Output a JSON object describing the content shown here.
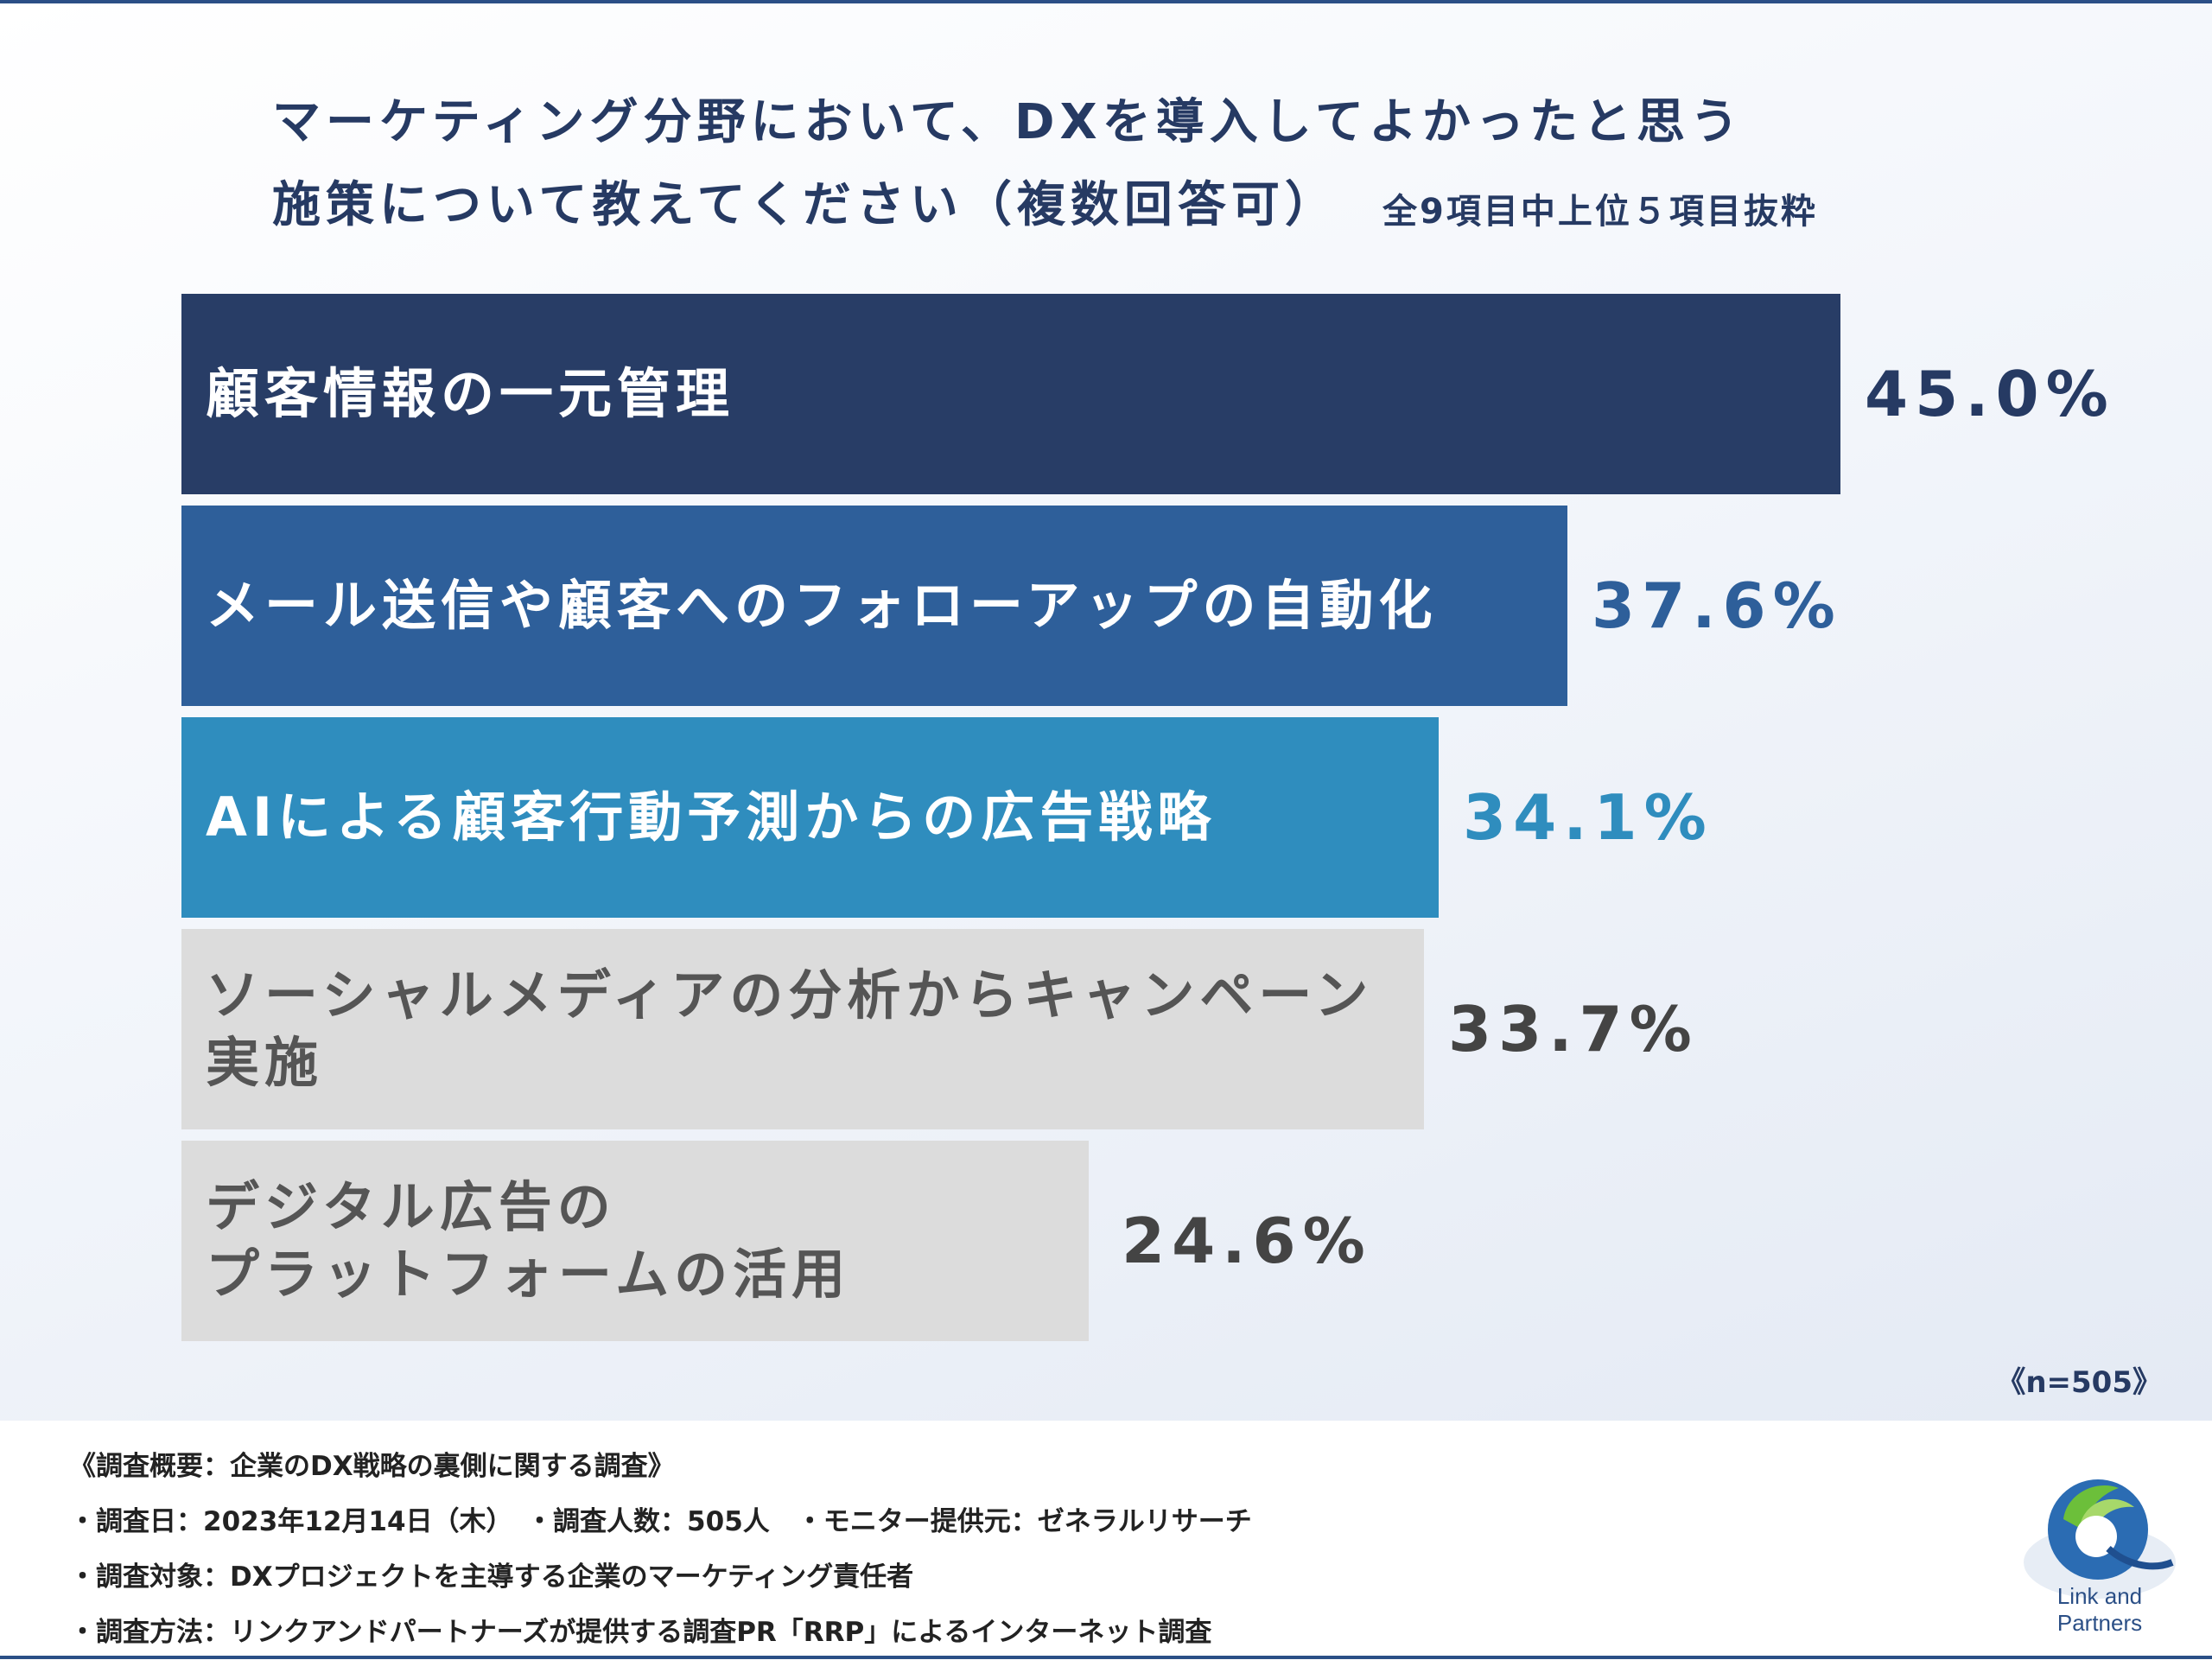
{
  "title_lines": [
    "マーケティング分野において、DXを導入してよかったと思う",
    "施策について教えてください（複数回答可）"
  ],
  "subtitle": "全9項目中上位５項目抜粋",
  "sample_label": "《n=505》",
  "notes": [
    "《調査概要：企業のDX戦略の裏側に関する調査》",
    "・調査日：2023年12月14日（木）　・調査人数：505人　・モニター提供元：ゼネラルリサーチ",
    "・調査対象：DXプロジェクトを主導する企業のマーケティング責任者",
    "・調査方法：リンクアンドパートナーズが提供する調査PR「RRP」によるインターネット調査"
  ],
  "logo_text": "Link and Partners",
  "chart_data": {
    "type": "bar",
    "orientation": "horizontal",
    "categories": [
      "顧客情報の一元管理",
      "メール送信や顧客へのフォローアップの自動化",
      "AIによる顧客行動予測からの広告戦略",
      "ソーシャルメディアの分析からキャンペーン実施",
      "デジタル広告の\nプラットフォームの活用"
    ],
    "values": [
      45.0,
      37.6,
      34.1,
      33.7,
      24.6
    ],
    "value_labels": [
      "45.0%",
      "37.6%",
      "34.1%",
      "33.7%",
      "24.6%"
    ],
    "colors": [
      "#283d66",
      "#2e5f9a",
      "#2f8dbe",
      "#dcdcdc",
      "#dcdcdc"
    ],
    "label_colors": [
      "#ffffff",
      "#ffffff",
      "#ffffff",
      "#555555",
      "#555555"
    ],
    "value_colors": [
      "#263a63",
      "#2e5f9a",
      "#2f8dbe",
      "#444444",
      "#444444"
    ],
    "xlim": [
      0,
      45.0
    ],
    "grid": false,
    "legend": "none"
  }
}
